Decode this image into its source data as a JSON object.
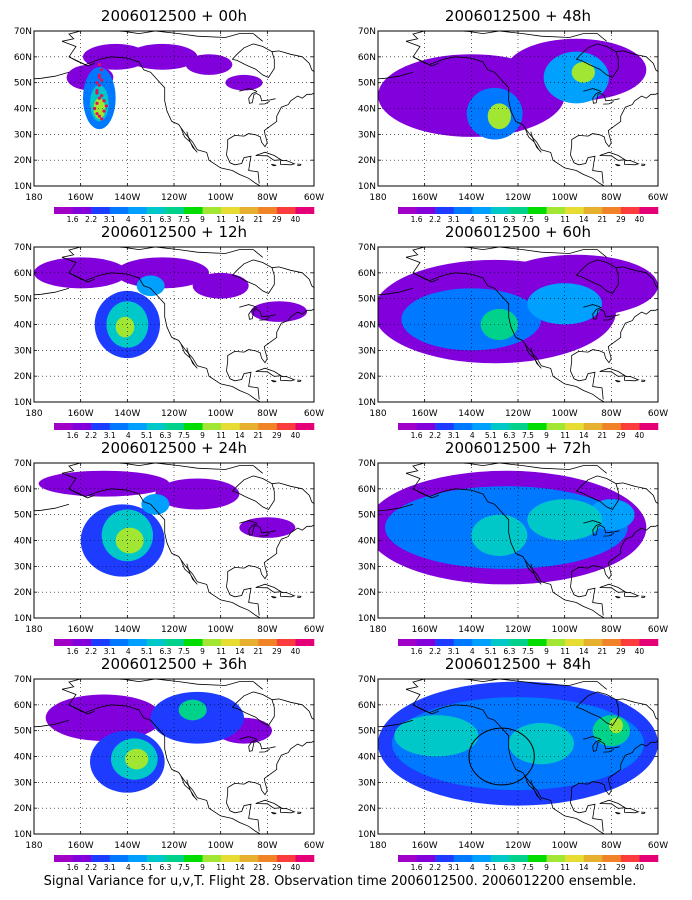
{
  "caption": "Signal Variance for u,v,T. Flight 28. Observation time 2006012500. 2006012200 ensemble.",
  "colorbar": {
    "labels": [
      "1.6",
      "2.2",
      "3.1",
      "4",
      "5.1",
      "6.3",
      "7.5",
      "9",
      "11",
      "14",
      "21",
      "29",
      "40"
    ],
    "colors": [
      "#a000c8",
      "#8200dc",
      "#1e3cff",
      "#0078ff",
      "#00a0ff",
      "#00c8c8",
      "#00d28c",
      "#00dc00",
      "#a0e632",
      "#e6dc32",
      "#e6af2d",
      "#f08228",
      "#fa3c3c",
      "#e60078"
    ]
  },
  "axes": {
    "x_ticks": [
      "180",
      "160W",
      "140W",
      "120W",
      "100W",
      "80W",
      "60W"
    ],
    "y_ticks": [
      "10N",
      "20N",
      "30N",
      "40N",
      "50N",
      "60N",
      "70N"
    ]
  },
  "chart_data": [
    {
      "type": "heatmap",
      "title": "2006012500 + 00h",
      "xlim": [
        -180,
        -60
      ],
      "ylim": [
        10,
        70
      ],
      "blobs": [
        {
          "lon": -156,
          "lat": 52,
          "rlon": 10,
          "rlat": 5,
          "level": 1
        },
        {
          "lon": -145,
          "lat": 60,
          "rlon": 14,
          "rlat": 5,
          "level": 1
        },
        {
          "lon": -125,
          "lat": 60,
          "rlon": 15,
          "rlat": 5,
          "level": 1
        },
        {
          "lon": -105,
          "lat": 57,
          "rlon": 10,
          "rlat": 4,
          "level": 1
        },
        {
          "lon": -90,
          "lat": 50,
          "rlon": 8,
          "rlat": 3,
          "level": 1
        },
        {
          "lon": -152,
          "lat": 44,
          "rlon": 7,
          "rlat": 12,
          "level": 3
        },
        {
          "lon": -152,
          "lat": 42,
          "rlon": 4,
          "rlat": 7,
          "level": 5
        },
        {
          "lon": -152,
          "lat": 40,
          "rlon": 2.5,
          "rlat": 4,
          "level": 8
        }
      ],
      "obs_points": [
        [
          -152,
          57
        ],
        [
          -151,
          55
        ],
        [
          -152,
          53
        ],
        [
          -151,
          51
        ],
        [
          -152,
          49
        ],
        [
          -153,
          47
        ],
        [
          -151,
          45
        ],
        [
          -150,
          43
        ],
        [
          -149,
          41
        ],
        [
          -150,
          39
        ],
        [
          -152,
          37
        ],
        [
          -151,
          36
        ],
        [
          -153,
          38
        ],
        [
          -154,
          40
        ],
        [
          -153,
          42
        ],
        [
          -152,
          44
        ],
        [
          -153,
          46
        ],
        [
          -153,
          50
        ],
        [
          -152,
          52
        ]
      ]
    },
    {
      "type": "heatmap",
      "title": "2006012500 + 12h",
      "xlim": [
        -180,
        -60
      ],
      "ylim": [
        10,
        70
      ],
      "blobs": [
        {
          "lon": -160,
          "lat": 60,
          "rlon": 20,
          "rlat": 6,
          "level": 1
        },
        {
          "lon": -125,
          "lat": 60,
          "rlon": 20,
          "rlat": 6,
          "level": 1
        },
        {
          "lon": -100,
          "lat": 55,
          "rlon": 12,
          "rlat": 5,
          "level": 1
        },
        {
          "lon": -75,
          "lat": 45,
          "rlon": 12,
          "rlat": 4,
          "level": 1
        },
        {
          "lon": -140,
          "lat": 40,
          "rlon": 14,
          "rlat": 13,
          "level": 2
        },
        {
          "lon": -140,
          "lat": 40,
          "rlon": 9,
          "rlat": 9,
          "level": 5
        },
        {
          "lon": -141,
          "lat": 39,
          "rlon": 4,
          "rlat": 4,
          "level": 8
        },
        {
          "lon": -130,
          "lat": 55,
          "rlon": 6,
          "rlat": 4,
          "level": 4
        }
      ],
      "obs_points": []
    },
    {
      "type": "heatmap",
      "title": "2006012500 + 24h",
      "xlim": [
        -180,
        -60
      ],
      "ylim": [
        10,
        70
      ],
      "blobs": [
        {
          "lon": -150,
          "lat": 62,
          "rlon": 28,
          "rlat": 5,
          "level": 1
        },
        {
          "lon": -110,
          "lat": 58,
          "rlon": 18,
          "rlat": 6,
          "level": 1
        },
        {
          "lon": -80,
          "lat": 45,
          "rlon": 12,
          "rlat": 4,
          "level": 1
        },
        {
          "lon": -142,
          "lat": 40,
          "rlon": 18,
          "rlat": 14,
          "level": 2
        },
        {
          "lon": -140,
          "lat": 42,
          "rlon": 11,
          "rlat": 10,
          "level": 5
        },
        {
          "lon": -139,
          "lat": 40,
          "rlon": 6,
          "rlat": 5,
          "level": 8
        },
        {
          "lon": -128,
          "lat": 54,
          "rlon": 6,
          "rlat": 4,
          "level": 4
        }
      ],
      "obs_points": []
    },
    {
      "type": "heatmap",
      "title": "2006012500 + 36h",
      "xlim": [
        -180,
        -60
      ],
      "ylim": [
        10,
        70
      ],
      "blobs": [
        {
          "lon": -150,
          "lat": 55,
          "rlon": 25,
          "rlat": 9,
          "level": 1
        },
        {
          "lon": -110,
          "lat": 55,
          "rlon": 20,
          "rlat": 10,
          "level": 2
        },
        {
          "lon": -90,
          "lat": 50,
          "rlon": 12,
          "rlat": 5,
          "level": 1
        },
        {
          "lon": -140,
          "lat": 38,
          "rlon": 16,
          "rlat": 12,
          "level": 2
        },
        {
          "lon": -137,
          "lat": 39,
          "rlon": 10,
          "rlat": 8,
          "level": 5
        },
        {
          "lon": -136,
          "lat": 39,
          "rlon": 5,
          "rlat": 4,
          "level": 8
        },
        {
          "lon": -112,
          "lat": 58,
          "rlon": 6,
          "rlat": 4,
          "level": 6
        }
      ],
      "obs_points": []
    },
    {
      "type": "heatmap",
      "title": "2006012500 + 48h",
      "xlim": [
        -180,
        -60
      ],
      "ylim": [
        10,
        70
      ],
      "blobs": [
        {
          "lon": -140,
          "lat": 45,
          "rlon": 40,
          "rlat": 16,
          "level": 1
        },
        {
          "lon": -95,
          "lat": 55,
          "rlon": 30,
          "rlat": 12,
          "level": 1
        },
        {
          "lon": -130,
          "lat": 38,
          "rlon": 12,
          "rlat": 10,
          "level": 3
        },
        {
          "lon": -128,
          "lat": 37,
          "rlon": 5,
          "rlat": 5,
          "level": 8
        },
        {
          "lon": -95,
          "lat": 52,
          "rlon": 14,
          "rlat": 10,
          "level": 4
        },
        {
          "lon": -92,
          "lat": 54,
          "rlon": 5,
          "rlat": 4,
          "level": 8
        }
      ],
      "obs_points": []
    },
    {
      "type": "heatmap",
      "title": "2006012500 + 60h",
      "xlim": [
        -180,
        -60
      ],
      "ylim": [
        10,
        70
      ],
      "blobs": [
        {
          "lon": -130,
          "lat": 45,
          "rlon": 52,
          "rlat": 20,
          "level": 1
        },
        {
          "lon": -95,
          "lat": 55,
          "rlon": 35,
          "rlat": 12,
          "level": 1
        },
        {
          "lon": -140,
          "lat": 42,
          "rlon": 30,
          "rlat": 12,
          "level": 3
        },
        {
          "lon": -128,
          "lat": 40,
          "rlon": 8,
          "rlat": 6,
          "level": 6
        },
        {
          "lon": -100,
          "lat": 48,
          "rlon": 16,
          "rlat": 8,
          "level": 4
        }
      ],
      "obs_points": []
    },
    {
      "type": "heatmap",
      "title": "2006012500 + 72h",
      "xlim": [
        -180,
        -60
      ],
      "ylim": [
        10,
        70
      ],
      "blobs": [
        {
          "lon": -125,
          "lat": 45,
          "rlon": 60,
          "rlat": 22,
          "level": 1
        },
        {
          "lon": -125,
          "lat": 45,
          "rlon": 52,
          "rlat": 16,
          "level": 3
        },
        {
          "lon": -128,
          "lat": 42,
          "rlon": 12,
          "rlat": 8,
          "level": 5
        },
        {
          "lon": -100,
          "lat": 48,
          "rlon": 16,
          "rlat": 8,
          "level": 5
        },
        {
          "lon": -80,
          "lat": 50,
          "rlon": 10,
          "rlat": 6,
          "level": 4
        }
      ],
      "obs_points": []
    },
    {
      "type": "heatmap",
      "title": "2006012500 + 84h",
      "xlim": [
        -180,
        -60
      ],
      "ylim": [
        10,
        70
      ],
      "blobs": [
        {
          "lon": -120,
          "lat": 45,
          "rlon": 60,
          "rlat": 24,
          "level": 2
        },
        {
          "lon": -120,
          "lat": 45,
          "rlon": 54,
          "rlat": 18,
          "level": 3
        },
        {
          "lon": -155,
          "lat": 48,
          "rlon": 18,
          "rlat": 8,
          "level": 5
        },
        {
          "lon": -110,
          "lat": 45,
          "rlon": 14,
          "rlat": 8,
          "level": 5
        },
        {
          "lon": -80,
          "lat": 50,
          "rlon": 8,
          "rlat": 6,
          "level": 6
        },
        {
          "lon": -78,
          "lat": 52,
          "rlon": 3,
          "rlat": 3,
          "level": 8
        }
      ],
      "circle": {
        "lon": -127,
        "lat": 40,
        "rlon": 14,
        "rlat": 11
      },
      "obs_points": []
    }
  ]
}
